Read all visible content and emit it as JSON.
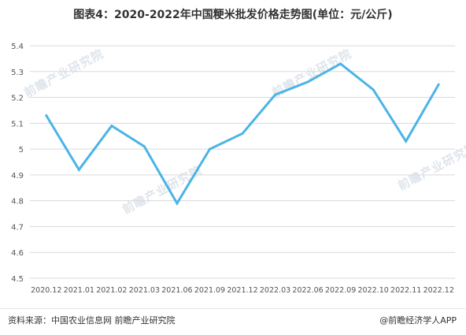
{
  "title": "图表4：2020-2022年中国粳米批发价格走势图(单位：元/公斤)",
  "watermark": "前瞻产业研究院",
  "footer": {
    "source": "资料来源：中国农业信息网 前瞻产业研究院",
    "brand": "@前瞻经济学人APP"
  },
  "chart_data": {
    "type": "line",
    "title": "图表4：2020-2022年中国粳米批发价格走势图(单位：元/公斤)",
    "categories": [
      "2020.12",
      "2021.01",
      "2021.02",
      "2021.03",
      "2021.06",
      "2021.09",
      "2021.12",
      "2022.03",
      "2022.06",
      "2022.09",
      "2022.10",
      "2022.11",
      "2022.12"
    ],
    "series": [
      {
        "values": [
          5.13,
          4.92,
          5.09,
          5.01,
          4.79,
          5.0,
          5.06,
          5.21,
          5.26,
          5.33,
          5.23,
          5.03,
          5.25
        ]
      }
    ],
    "yticks": [
      "4.5",
      "4.6",
      "4.7",
      "4.8",
      "4.9",
      "5",
      "5.1",
      "5.2",
      "5.3",
      "5.4"
    ],
    "ylim": [
      4.5,
      5.4
    ],
    "grid": true,
    "line_color": "#4bb4e6",
    "grid_color": "#d9d9d9"
  }
}
